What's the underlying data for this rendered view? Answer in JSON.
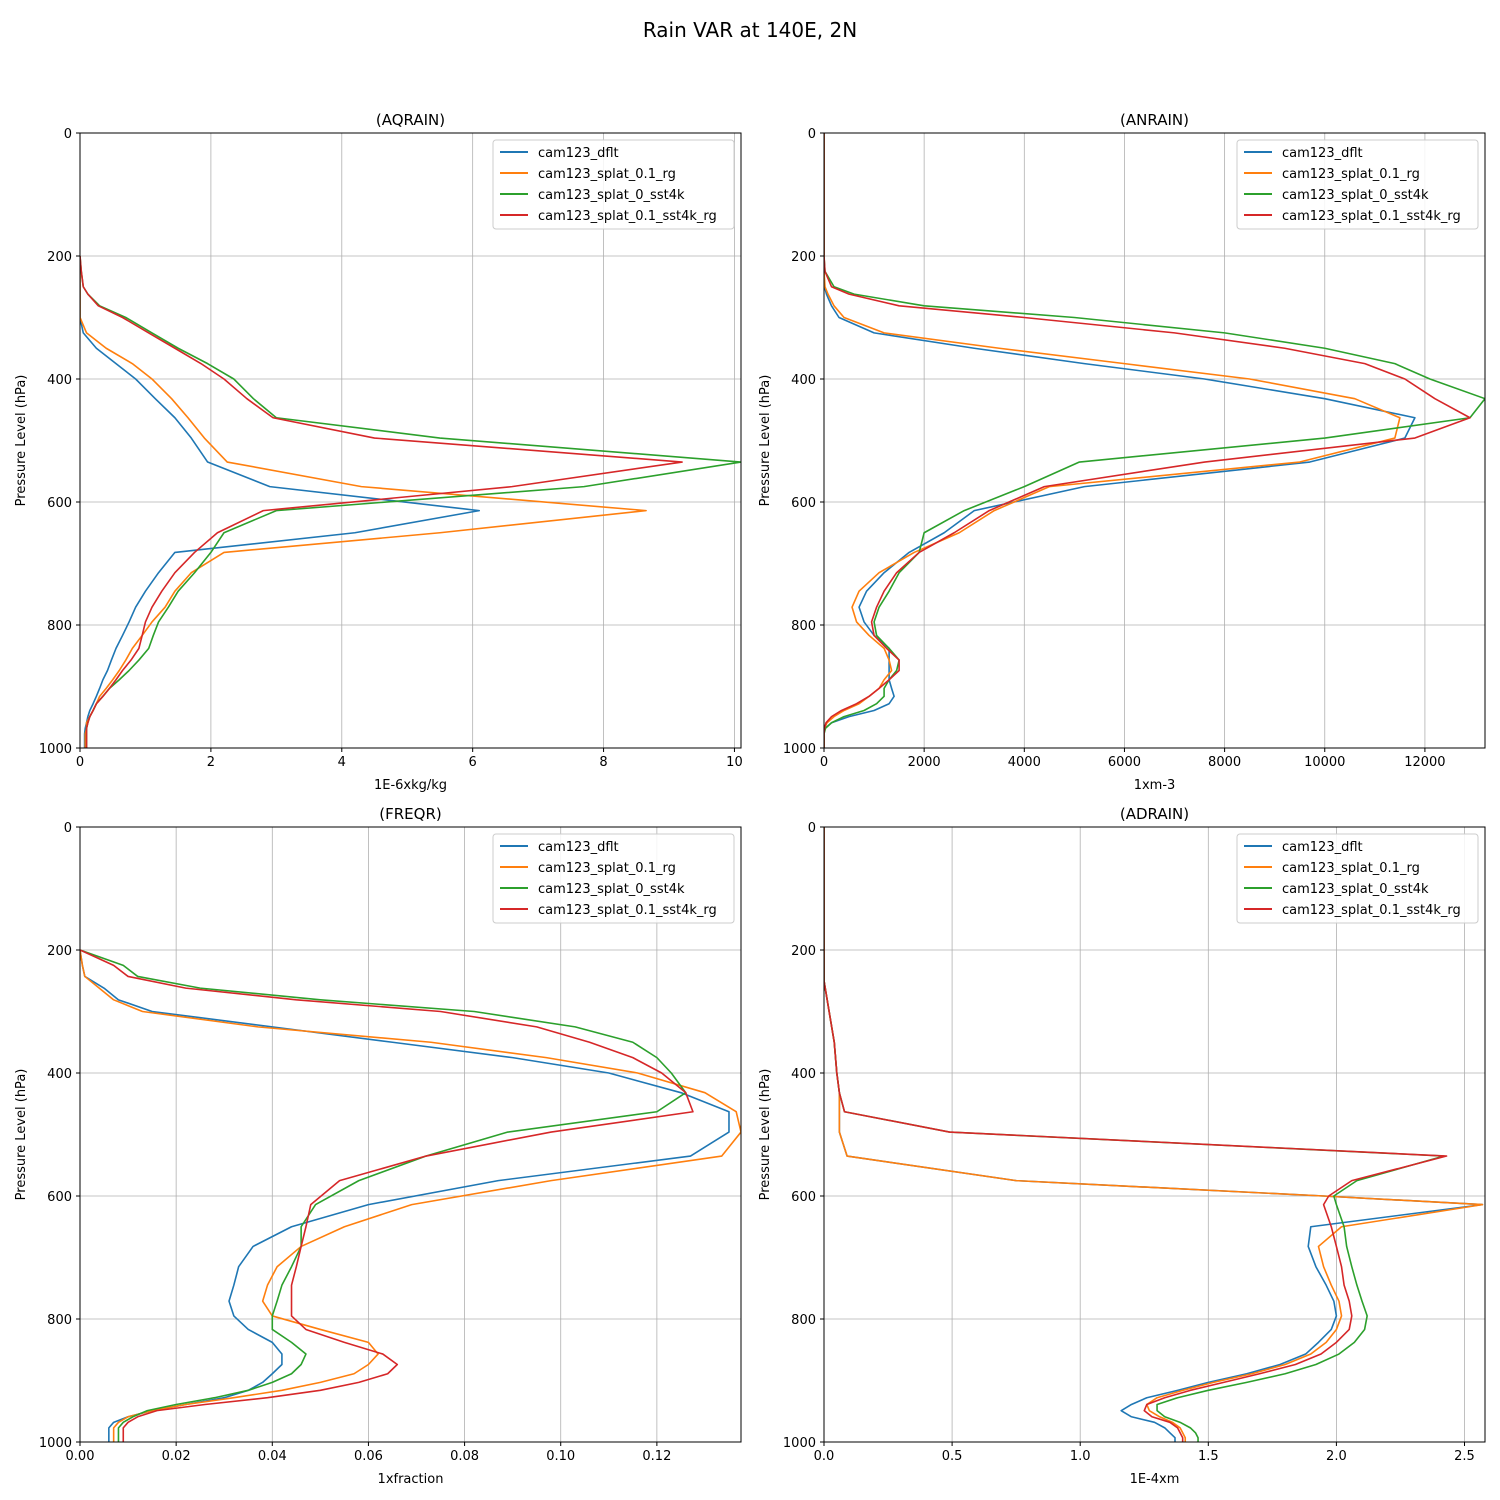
{
  "figure": {
    "title": "Rain VAR at 140E, 2N"
  },
  "legend_entries": [
    "cam123_dflt",
    "cam123_splat_0.1_rg",
    "cam123_splat_0_sst4k",
    "cam123_splat_0.1_sst4k_rg"
  ],
  "series_colors": [
    "#1f77b4",
    "#ff7f0e",
    "#2ca02c",
    "#d62728"
  ],
  "chart_data": [
    {
      "type": "line",
      "title": "(AQRAIN)",
      "xlabel": "1E-6xkg/kg",
      "ylabel": "Pressure Level (hPa)",
      "xlim": [
        0,
        10.1
      ],
      "ylim": [
        1000,
        0
      ],
      "xticks": [
        0,
        2,
        4,
        6,
        8,
        10
      ],
      "xtick_labels": [
        "0",
        "2",
        "4",
        "6",
        "8",
        "10"
      ],
      "yticks": [
        0,
        200,
        400,
        600,
        800,
        1000
      ],
      "ytick_labels": [
        "0",
        "200",
        "400",
        "600",
        "800",
        "1000"
      ],
      "grid": true,
      "legend": "upper right",
      "y": [
        200,
        225,
        250,
        262,
        281,
        300,
        325,
        350,
        375,
        400,
        432,
        463,
        496,
        535,
        575,
        614,
        650,
        682,
        715,
        745,
        771,
        795,
        817,
        838,
        857,
        874,
        889,
        903,
        916,
        928,
        939,
        949,
        959,
        968,
        977,
        985,
        993,
        1000
      ],
      "series": [
        {
          "name": "cam123_dflt",
          "x": [
            0,
            0,
            0,
            0,
            0,
            0,
            0.05,
            0.25,
            0.55,
            0.85,
            1.15,
            1.45,
            1.7,
            1.95,
            2.9,
            6.1,
            4.2,
            1.45,
            1.2,
            1.0,
            0.85,
            0.75,
            0.65,
            0.55,
            0.48,
            0.42,
            0.35,
            0.3,
            0.25,
            0.2,
            0.15,
            0.12,
            0.1,
            0.08,
            0.07,
            0.07,
            0.07,
            0.07
          ]
        },
        {
          "name": "cam123_splat_0.1_rg",
          "x": [
            0,
            0,
            0,
            0,
            0,
            0,
            0.1,
            0.4,
            0.8,
            1.1,
            1.4,
            1.65,
            1.9,
            2.25,
            4.3,
            8.65,
            5.5,
            2.2,
            1.7,
            1.45,
            1.3,
            1.1,
            0.95,
            0.8,
            0.7,
            0.6,
            0.5,
            0.4,
            0.3,
            0.25,
            0.2,
            0.15,
            0.1,
            0.1,
            0.08,
            0.08,
            0.08,
            0.08
          ]
        },
        {
          "name": "cam123_splat_0_sst4k",
          "x": [
            0,
            0.02,
            0.05,
            0.12,
            0.3,
            0.7,
            1.1,
            1.5,
            1.95,
            2.35,
            2.65,
            3.0,
            5.5,
            10.1,
            7.7,
            3.0,
            2.2,
            2.0,
            1.75,
            1.5,
            1.35,
            1.2,
            1.12,
            1.05,
            0.9,
            0.75,
            0.6,
            0.45,
            0.35,
            0.25,
            0.2,
            0.15,
            0.12,
            0.1,
            0.1,
            0.1,
            0.1,
            0.1
          ]
        },
        {
          "name": "cam123_splat_0.1_sst4k_rg",
          "x": [
            0,
            0.02,
            0.05,
            0.12,
            0.28,
            0.65,
            1.05,
            1.45,
            1.85,
            2.2,
            2.55,
            2.95,
            4.5,
            9.2,
            6.6,
            2.8,
            2.1,
            1.75,
            1.45,
            1.25,
            1.1,
            1.0,
            0.95,
            0.9,
            0.78,
            0.65,
            0.55,
            0.45,
            0.35,
            0.25,
            0.2,
            0.15,
            0.12,
            0.1,
            0.1,
            0.1,
            0.1,
            0.1
          ]
        }
      ]
    },
    {
      "type": "line",
      "title": "(ANRAIN)",
      "xlabel": "1xm-3",
      "ylabel": "Pressure Level (hPa)",
      "xlim": [
        0,
        13200
      ],
      "ylim": [
        1000,
        0
      ],
      "xticks": [
        0,
        2000,
        4000,
        6000,
        8000,
        10000,
        12000
      ],
      "xtick_labels": [
        "0",
        "2000",
        "4000",
        "6000",
        "8000",
        "10000",
        "12000"
      ],
      "yticks": [
        0,
        200,
        400,
        600,
        800,
        1000
      ],
      "ytick_labels": [
        "0",
        "200",
        "400",
        "600",
        "800",
        "1000"
      ],
      "grid": true,
      "legend": "upper right",
      "y": [
        0,
        50,
        100,
        150,
        200,
        225,
        250,
        262,
        281,
        300,
        325,
        350,
        375,
        400,
        432,
        463,
        496,
        535,
        575,
        614,
        650,
        682,
        715,
        745,
        771,
        795,
        817,
        838,
        857,
        874,
        889,
        903,
        916,
        928,
        939,
        949,
        959,
        968,
        977,
        985,
        993,
        1000
      ],
      "series": [
        {
          "name": "cam123_dflt",
          "x": [
            0,
            0,
            0,
            0,
            0,
            0,
            10,
            50,
            150,
            300,
            1000,
            3000,
            5200,
            7600,
            10000,
            11800,
            11600,
            9700,
            5200,
            3000,
            2400,
            1700,
            1200,
            850,
            700,
            800,
            1000,
            1300,
            1300,
            1300,
            1300,
            1350,
            1400,
            1300,
            1000,
            500,
            150,
            20,
            0,
            0,
            0,
            0
          ]
        },
        {
          "name": "cam123_splat_0.1_rg",
          "x": [
            0,
            0,
            0,
            0,
            0,
            0,
            20,
            80,
            200,
            400,
            1200,
            3500,
            6000,
            8500,
            10600,
            11500,
            11400,
            9500,
            4500,
            3400,
            2700,
            1800,
            1100,
            700,
            560,
            650,
            900,
            1200,
            1300,
            1350,
            1200,
            1100,
            900,
            700,
            400,
            200,
            60,
            10,
            0,
            0,
            0,
            0
          ]
        },
        {
          "name": "cam123_splat_0_sst4k",
          "x": [
            0,
            0,
            0,
            0,
            0,
            20,
            200,
            600,
            2000,
            5000,
            8000,
            10000,
            11400,
            12100,
            13200,
            12900,
            10000,
            5100,
            4000,
            2800,
            2000,
            1900,
            1500,
            1300,
            1100,
            1000,
            1050,
            1300,
            1500,
            1450,
            1300,
            1200,
            1200,
            1050,
            800,
            400,
            150,
            30,
            0,
            0,
            0,
            0
          ]
        },
        {
          "name": "cam123_splat_0.1_sst4k_rg",
          "x": [
            0,
            0,
            0,
            0,
            0,
            20,
            150,
            500,
            1500,
            4000,
            7000,
            9200,
            10800,
            11600,
            12200,
            12900,
            11800,
            7600,
            4400,
            3300,
            2600,
            1900,
            1450,
            1200,
            1050,
            950,
            1000,
            1250,
            1500,
            1500,
            1300,
            1100,
            900,
            650,
            350,
            150,
            40,
            10,
            0,
            0,
            0,
            0
          ]
        }
      ]
    },
    {
      "type": "line",
      "title": "(FREQR)",
      "xlabel": "1xfraction",
      "ylabel": "Pressure Level (hPa)",
      "xlim": [
        0,
        0.1375
      ],
      "ylim": [
        1000,
        0
      ],
      "xticks": [
        0,
        0.02,
        0.04,
        0.06,
        0.08,
        0.1,
        0.12
      ],
      "xtick_labels": [
        "0.00",
        "0.02",
        "0.04",
        "0.06",
        "0.08",
        "0.10",
        "0.12"
      ],
      "yticks": [
        0,
        200,
        400,
        600,
        800,
        1000
      ],
      "ytick_labels": [
        "0",
        "200",
        "400",
        "600",
        "800",
        "1000"
      ],
      "grid": true,
      "legend": "upper right",
      "y": [
        200,
        225,
        243,
        262,
        281,
        300,
        325,
        350,
        375,
        400,
        432,
        463,
        496,
        535,
        575,
        614,
        650,
        682,
        715,
        745,
        771,
        795,
        817,
        838,
        857,
        874,
        889,
        903,
        916,
        928,
        939,
        949,
        959,
        968,
        977,
        985,
        993,
        1000
      ],
      "series": [
        {
          "name": "cam123_dflt",
          "x": [
            0,
            0.0005,
            0.001,
            0.005,
            0.008,
            0.015,
            0.04,
            0.065,
            0.09,
            0.11,
            0.125,
            0.135,
            0.135,
            0.127,
            0.087,
            0.06,
            0.044,
            0.036,
            0.033,
            0.032,
            0.031,
            0.032,
            0.035,
            0.04,
            0.042,
            0.042,
            0.04,
            0.038,
            0.035,
            0.03,
            0.022,
            0.015,
            0.01,
            0.007,
            0.006,
            0.006,
            0.006,
            0.006
          ]
        },
        {
          "name": "cam123_splat_0.1_rg",
          "x": [
            0,
            0.0005,
            0.001,
            0.004,
            0.007,
            0.013,
            0.037,
            0.073,
            0.097,
            0.116,
            0.13,
            0.1365,
            0.1375,
            0.1335,
            0.098,
            0.069,
            0.055,
            0.046,
            0.041,
            0.039,
            0.038,
            0.04,
            0.05,
            0.06,
            0.062,
            0.06,
            0.057,
            0.05,
            0.042,
            0.032,
            0.022,
            0.015,
            0.01,
            0.008,
            0.007,
            0.007,
            0.007,
            0.007
          ]
        },
        {
          "name": "cam123_splat_0_sst4k",
          "x": [
            0,
            0.009,
            0.012,
            0.025,
            0.05,
            0.082,
            0.103,
            0.115,
            0.12,
            0.123,
            0.126,
            0.12,
            0.089,
            0.072,
            0.058,
            0.049,
            0.046,
            0.046,
            0.044,
            0.042,
            0.041,
            0.04,
            0.04,
            0.044,
            0.047,
            0.046,
            0.044,
            0.04,
            0.035,
            0.028,
            0.02,
            0.014,
            0.011,
            0.009,
            0.008,
            0.008,
            0.008,
            0.008
          ]
        },
        {
          "name": "cam123_splat_0.1_sst4k_rg",
          "x": [
            0,
            0.007,
            0.01,
            0.022,
            0.045,
            0.075,
            0.095,
            0.106,
            0.115,
            0.121,
            0.126,
            0.1275,
            0.098,
            0.072,
            0.054,
            0.048,
            0.047,
            0.046,
            0.045,
            0.044,
            0.044,
            0.044,
            0.047,
            0.055,
            0.063,
            0.066,
            0.064,
            0.058,
            0.05,
            0.039,
            0.026,
            0.016,
            0.012,
            0.01,
            0.009,
            0.009,
            0.009,
            0.009
          ]
        }
      ]
    },
    {
      "type": "line",
      "title": "(ADRAIN)",
      "xlabel": "1E-4xm",
      "ylabel": "Pressure Level (hPa)",
      "xlim": [
        0,
        2.58
      ],
      "ylim": [
        1000,
        0
      ],
      "xticks": [
        0,
        0.5,
        1.0,
        1.5,
        2.0,
        2.5
      ],
      "xtick_labels": [
        "0.0",
        "0.5",
        "1.0",
        "1.5",
        "2.0",
        "2.5"
      ],
      "yticks": [
        0,
        200,
        400,
        600,
        800,
        1000
      ],
      "ytick_labels": [
        "0",
        "200",
        "400",
        "600",
        "800",
        "1000"
      ],
      "grid": true,
      "legend": "upper right",
      "y": [
        0,
        50,
        100,
        150,
        200,
        250,
        300,
        350,
        400,
        432,
        463,
        496,
        535,
        575,
        600,
        614,
        650,
        682,
        715,
        745,
        771,
        795,
        817,
        838,
        857,
        874,
        889,
        903,
        916,
        928,
        939,
        949,
        959,
        968,
        977,
        985,
        993,
        1000
      ],
      "series": [
        {
          "name": "cam123_dflt",
          "x": [
            0,
            0,
            0,
            0,
            0,
            0,
            0.02,
            0.04,
            0.05,
            0.06,
            0.06,
            0.06,
            0.09,
            0.75,
            1.95,
            2.57,
            1.9,
            1.89,
            1.92,
            1.96,
            1.99,
            2.0,
            1.98,
            1.93,
            1.88,
            1.78,
            1.65,
            1.5,
            1.38,
            1.26,
            1.2,
            1.16,
            1.2,
            1.29,
            1.33,
            1.35,
            1.37,
            1.37
          ]
        },
        {
          "name": "cam123_splat_0.1_rg",
          "x": [
            0,
            0,
            0,
            0,
            0,
            0,
            0.02,
            0.04,
            0.05,
            0.06,
            0.06,
            0.06,
            0.09,
            0.75,
            1.95,
            2.57,
            2.02,
            1.93,
            1.95,
            1.98,
            2.01,
            2.02,
            2.0,
            1.96,
            1.9,
            1.8,
            1.67,
            1.52,
            1.4,
            1.3,
            1.26,
            1.27,
            1.31,
            1.36,
            1.39,
            1.4,
            1.41,
            1.41
          ]
        },
        {
          "name": "cam123_splat_0_sst4k",
          "x": [
            0,
            0,
            0,
            0,
            0,
            0,
            0.02,
            0.04,
            0.05,
            0.06,
            0.08,
            0.49,
            2.42,
            2.08,
            1.99,
            2.0,
            2.03,
            2.04,
            2.06,
            2.08,
            2.1,
            2.12,
            2.11,
            2.07,
            2.01,
            1.92,
            1.8,
            1.65,
            1.5,
            1.38,
            1.3,
            1.3,
            1.33,
            1.39,
            1.43,
            1.45,
            1.46,
            1.46
          ]
        },
        {
          "name": "cam123_splat_0.1_sst4k_rg",
          "x": [
            0,
            0,
            0,
            0,
            0,
            0,
            0.02,
            0.04,
            0.05,
            0.06,
            0.08,
            0.49,
            2.43,
            2.06,
            1.97,
            1.95,
            1.98,
            2.0,
            2.02,
            2.03,
            2.05,
            2.06,
            2.05,
            2.0,
            1.94,
            1.84,
            1.7,
            1.56,
            1.43,
            1.33,
            1.26,
            1.25,
            1.28,
            1.35,
            1.38,
            1.39,
            1.4,
            1.4
          ]
        }
      ]
    }
  ]
}
